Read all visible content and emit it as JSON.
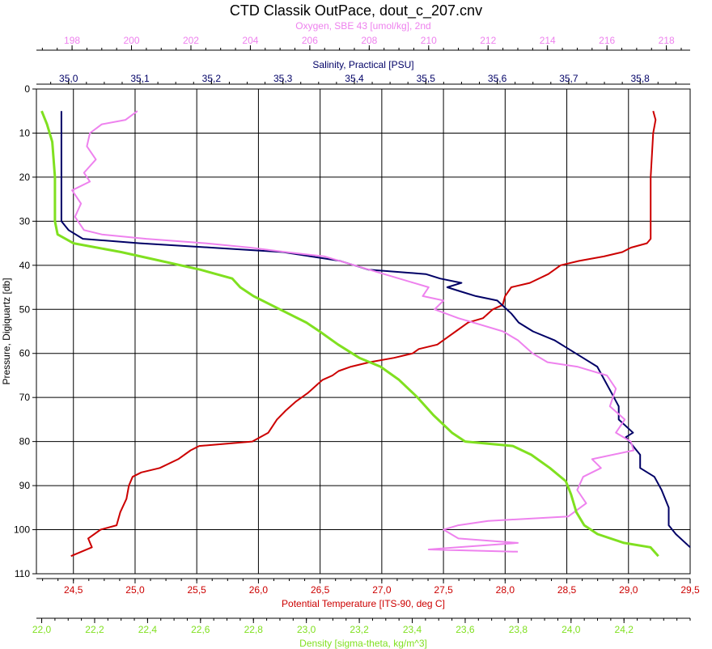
{
  "chart_data": {
    "type": "line",
    "title": "CTD Classik OutPace, dout_c_207.cnv",
    "grid": true,
    "y_axis": {
      "label": "Pressure, Digiquartz [db]",
      "range": [
        110,
        0
      ],
      "ticks": [
        "0",
        "10",
        "20",
        "30",
        "40",
        "50",
        "60",
        "70",
        "80",
        "90",
        "100",
        "110"
      ]
    },
    "x_axes": [
      {
        "id": "oxygen",
        "label": "Oxygen, SBE 43 [umol/kg], 2nd",
        "position": "top-outer",
        "color": "#ee82ee",
        "range": [
          196.8,
          218.8
        ],
        "ticks": [
          "198",
          "200",
          "202",
          "204",
          "206",
          "208",
          "210",
          "212",
          "214",
          "216",
          "218"
        ]
      },
      {
        "id": "salinity",
        "label": "Salinity, Practical [PSU]",
        "position": "top-inner",
        "color": "#000066",
        "range": [
          34.955,
          35.87
        ],
        "ticks": [
          "35,0",
          "35,1",
          "35,2",
          "35,3",
          "35,4",
          "35,5",
          "35,6",
          "35,7",
          "35,8"
        ]
      },
      {
        "id": "temperature",
        "label": "Potential Temperature [ITS-90, deg C]",
        "position": "bottom-inner",
        "color": "#cc0000",
        "range": [
          24.2,
          29.5
        ],
        "ticks": [
          "24,5",
          "25,0",
          "25,5",
          "26,0",
          "26,5",
          "27,0",
          "27,5",
          "28,0",
          "28,5",
          "29,0",
          "29,5"
        ]
      },
      {
        "id": "density",
        "label": "Density [sigma-theta, kg/m^3]",
        "position": "bottom-outer",
        "color": "#80e020",
        "range": [
          21.98,
          24.45
        ],
        "ticks": [
          "22,0",
          "22,2",
          "22,4",
          "22,6",
          "22,8",
          "23,0",
          "23,2",
          "23,4",
          "23,6",
          "23,8",
          "24,0",
          "24,2"
        ]
      }
    ],
    "series": [
      {
        "axis": "temperature",
        "color": "#cc0000",
        "points": [
          [
            29.2,
            5
          ],
          [
            29.22,
            7
          ],
          [
            29.2,
            10
          ],
          [
            29.18,
            20
          ],
          [
            29.18,
            30
          ],
          [
            29.18,
            34
          ],
          [
            29.15,
            35
          ],
          [
            29.02,
            36
          ],
          [
            28.95,
            37
          ],
          [
            28.8,
            38
          ],
          [
            28.6,
            39
          ],
          [
            28.45,
            40
          ],
          [
            28.35,
            42
          ],
          [
            28.2,
            44
          ],
          [
            28.05,
            45
          ],
          [
            28.0,
            47
          ],
          [
            27.98,
            49
          ],
          [
            27.9,
            50
          ],
          [
            27.82,
            52
          ],
          [
            27.7,
            53
          ],
          [
            27.6,
            55
          ],
          [
            27.55,
            56
          ],
          [
            27.45,
            58
          ],
          [
            27.3,
            59
          ],
          [
            27.25,
            60
          ],
          [
            27.1,
            61
          ],
          [
            26.9,
            62
          ],
          [
            26.75,
            63
          ],
          [
            26.65,
            64
          ],
          [
            26.6,
            65
          ],
          [
            26.52,
            66
          ],
          [
            26.48,
            67
          ],
          [
            26.4,
            69
          ],
          [
            26.3,
            71
          ],
          [
            26.22,
            73
          ],
          [
            26.15,
            75
          ],
          [
            26.08,
            78
          ],
          [
            25.95,
            80
          ],
          [
            25.52,
            81
          ],
          [
            25.45,
            82
          ],
          [
            25.35,
            84
          ],
          [
            25.2,
            86
          ],
          [
            25.05,
            87
          ],
          [
            24.98,
            88
          ],
          [
            24.95,
            90
          ],
          [
            24.93,
            93
          ],
          [
            24.88,
            96
          ],
          [
            24.85,
            99
          ],
          [
            24.72,
            100
          ],
          [
            24.62,
            102
          ],
          [
            24.65,
            104
          ],
          [
            24.48,
            106
          ]
        ]
      },
      {
        "axis": "salinity",
        "color": "#000066",
        "points": [
          [
            34.99,
            5
          ],
          [
            34.99,
            10
          ],
          [
            34.99,
            20
          ],
          [
            34.99,
            30
          ],
          [
            35.0,
            32
          ],
          [
            35.02,
            34
          ],
          [
            35.1,
            35
          ],
          [
            35.2,
            36
          ],
          [
            35.3,
            37
          ],
          [
            35.38,
            39
          ],
          [
            35.42,
            41
          ],
          [
            35.5,
            42
          ],
          [
            35.52,
            43
          ],
          [
            35.55,
            44
          ],
          [
            35.53,
            45
          ],
          [
            35.55,
            46
          ],
          [
            35.57,
            47
          ],
          [
            35.6,
            48
          ],
          [
            35.62,
            51
          ],
          [
            35.63,
            53
          ],
          [
            35.65,
            55
          ],
          [
            35.68,
            57
          ],
          [
            35.7,
            59
          ],
          [
            35.72,
            61
          ],
          [
            35.74,
            63
          ],
          [
            35.75,
            66
          ],
          [
            35.76,
            69
          ],
          [
            35.77,
            72
          ],
          [
            35.77,
            75
          ],
          [
            35.79,
            78
          ],
          [
            35.78,
            79
          ],
          [
            35.79,
            81
          ],
          [
            35.8,
            83
          ],
          [
            35.8,
            86
          ],
          [
            35.82,
            88
          ],
          [
            35.83,
            91
          ],
          [
            35.84,
            95
          ],
          [
            35.84,
            99
          ],
          [
            35.85,
            101
          ],
          [
            35.87,
            104
          ]
        ]
      },
      {
        "axis": "oxygen",
        "color": "#ee82ee",
        "points": [
          [
            200.2,
            5
          ],
          [
            199.8,
            7
          ],
          [
            199.0,
            8
          ],
          [
            198.6,
            10
          ],
          [
            198.5,
            13
          ],
          [
            198.8,
            16
          ],
          [
            198.4,
            19
          ],
          [
            198.6,
            21
          ],
          [
            198.0,
            23
          ],
          [
            198.3,
            26
          ],
          [
            198.1,
            29
          ],
          [
            198.4,
            32
          ],
          [
            199.0,
            33
          ],
          [
            200.5,
            34
          ],
          [
            202.5,
            35
          ],
          [
            204.0,
            36
          ],
          [
            205.2,
            37
          ],
          [
            206.5,
            38
          ],
          [
            207.5,
            40
          ],
          [
            208.5,
            42
          ],
          [
            209.5,
            44
          ],
          [
            210.0,
            45
          ],
          [
            209.8,
            47
          ],
          [
            210.5,
            48
          ],
          [
            210.2,
            50
          ],
          [
            211.0,
            52
          ],
          [
            211.5,
            53
          ],
          [
            212.5,
            55
          ],
          [
            213.0,
            57
          ],
          [
            213.5,
            60
          ],
          [
            214.0,
            62
          ],
          [
            215.0,
            63
          ],
          [
            216.0,
            65
          ],
          [
            216.3,
            68
          ],
          [
            216.1,
            72
          ],
          [
            216.6,
            75
          ],
          [
            216.3,
            78
          ],
          [
            216.8,
            80
          ],
          [
            216.9,
            82
          ],
          [
            215.5,
            84
          ],
          [
            215.8,
            86
          ],
          [
            215.2,
            88
          ],
          [
            215.0,
            91
          ],
          [
            215.3,
            94
          ],
          [
            214.7,
            97
          ],
          [
            212.0,
            98
          ],
          [
            211.0,
            99
          ],
          [
            210.5,
            100
          ],
          [
            211.0,
            102
          ],
          [
            213.0,
            103
          ],
          [
            211.0,
            104
          ],
          [
            210.0,
            104.5
          ],
          [
            213.0,
            105
          ]
        ]
      },
      {
        "axis": "density",
        "color": "#80e020",
        "points": [
          [
            22.0,
            5
          ],
          [
            22.02,
            8
          ],
          [
            22.04,
            12
          ],
          [
            22.05,
            20
          ],
          [
            22.05,
            30
          ],
          [
            22.06,
            33
          ],
          [
            22.12,
            35
          ],
          [
            22.3,
            37
          ],
          [
            22.45,
            39
          ],
          [
            22.6,
            41
          ],
          [
            22.72,
            43
          ],
          [
            22.75,
            45
          ],
          [
            22.8,
            47
          ],
          [
            22.9,
            50
          ],
          [
            23.0,
            53
          ],
          [
            23.05,
            55
          ],
          [
            23.12,
            58
          ],
          [
            23.2,
            61
          ],
          [
            23.28,
            63
          ],
          [
            23.35,
            66
          ],
          [
            23.42,
            70
          ],
          [
            23.48,
            74
          ],
          [
            23.55,
            78
          ],
          [
            23.6,
            80
          ],
          [
            23.78,
            81
          ],
          [
            23.85,
            83
          ],
          [
            23.92,
            86
          ],
          [
            23.98,
            89
          ],
          [
            24.0,
            92
          ],
          [
            24.02,
            96
          ],
          [
            24.05,
            99
          ],
          [
            24.1,
            101
          ],
          [
            24.2,
            103
          ],
          [
            24.3,
            104
          ],
          [
            24.33,
            106
          ]
        ]
      }
    ]
  }
}
